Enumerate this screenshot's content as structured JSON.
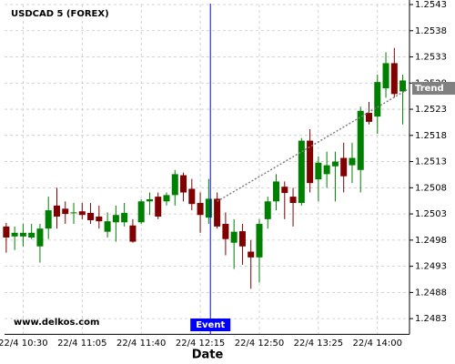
{
  "chart_data": {
    "type": "candlestick",
    "title": "USDCAD 5 (FOREX)",
    "watermark": "www.delkos.com",
    "x_label": "Date",
    "x": [
      620,
      625,
      630,
      635,
      640,
      645,
      650,
      655,
      660,
      665,
      670,
      675,
      680,
      685,
      690,
      695,
      700,
      705,
      710,
      715,
      720,
      725,
      730,
      735,
      740,
      745,
      750,
      755,
      760,
      765,
      770,
      775,
      780,
      785,
      790,
      795,
      800,
      805,
      810,
      815,
      820,
      825,
      830,
      835,
      840,
      845,
      850,
      855
    ],
    "open": [
      1.25006,
      1.24987,
      1.24987,
      1.24985,
      1.24968,
      1.25002,
      1.25046,
      1.2504,
      1.25032,
      1.25035,
      1.25032,
      1.25025,
      1.24996,
      1.25014,
      1.25014,
      1.25008,
      1.25014,
      1.25054,
      1.25063,
      1.25054,
      1.25066,
      1.25104,
      1.25078,
      1.25051,
      1.25023,
      1.25059,
      1.25011,
      1.24975,
      1.24997,
      1.24958,
      1.24947,
      1.2502,
      1.25054,
      1.25082,
      1.25063,
      1.25051,
      1.2517,
      1.25096,
      1.25106,
      1.25121,
      1.25137,
      1.25123,
      1.25114,
      1.25223,
      1.25216,
      1.2527,
      1.25318,
      1.25264
    ],
    "high": [
      1.25013,
      1.25006,
      1.25011,
      1.25011,
      1.25011,
      1.25063,
      1.2508,
      1.25054,
      1.25051,
      1.25051,
      1.25051,
      1.25046,
      1.25033,
      1.25046,
      1.25051,
      1.2502,
      1.25058,
      1.25071,
      1.25071,
      1.25071,
      1.25114,
      1.25109,
      1.25097,
      1.25071,
      1.25097,
      1.25071,
      1.25033,
      1.2502,
      1.25011,
      1.2498,
      1.2502,
      1.25063,
      1.25106,
      1.25092,
      1.2508,
      1.25175,
      1.25192,
      1.2514,
      1.25149,
      1.25149,
      1.25166,
      1.25166,
      1.25235,
      1.25244,
      1.25296,
      1.25339,
      1.25347,
      1.25296
    ],
    "low": [
      1.24956,
      1.24961,
      1.24968,
      1.24982,
      1.24937,
      1.24982,
      1.25002,
      1.25011,
      1.25011,
      1.2502,
      1.25011,
      1.25002,
      1.24985,
      1.24977,
      1.25006,
      1.24975,
      1.25011,
      1.25028,
      1.2502,
      1.25046,
      1.25046,
      1.25054,
      1.25037,
      1.24994,
      1.25011,
      1.25002,
      1.24951,
      1.24925,
      1.24933,
      1.24887,
      1.24899,
      1.25002,
      1.25037,
      1.2502,
      1.25006,
      1.25046,
      1.25071,
      1.25054,
      1.2508,
      1.25054,
      1.25071,
      1.25089,
      1.25071,
      1.25201,
      1.25183,
      1.25252,
      1.25252,
      1.25201
    ],
    "close": [
      1.24985,
      1.24994,
      1.24994,
      1.24994,
      1.25002,
      1.25037,
      1.25025,
      1.2503,
      1.25033,
      1.25028,
      1.25018,
      1.25016,
      1.25016,
      1.25028,
      1.25032,
      1.24977,
      1.25054,
      1.25058,
      1.25025,
      1.25066,
      1.25106,
      1.25071,
      1.25049,
      1.25028,
      1.25059,
      1.25006,
      1.24982,
      1.24996,
      1.24968,
      1.24947,
      1.25011,
      1.25054,
      1.25092,
      1.2507,
      1.25051,
      1.2517,
      1.25089,
      1.25128,
      1.25123,
      1.2513,
      1.25102,
      1.25137,
      1.25227,
      1.25206,
      1.25282,
      1.25318,
      1.25259,
      1.25285
    ],
    "up_color": "#008000",
    "down_color": "#800000",
    "xlim": [
      619,
      859
    ],
    "xticks": [
      {
        "value": 630,
        "label": "22/4 10:30"
      },
      {
        "value": 665,
        "label": "22/4 11:05"
      },
      {
        "value": 700,
        "label": "22/4 11:40"
      },
      {
        "value": 735,
        "label": "22/4 12:15"
      },
      {
        "value": 770,
        "label": "22/4 12:50"
      },
      {
        "value": 805,
        "label": "22/4 13:25"
      },
      {
        "value": 840,
        "label": "22/4 14:00"
      }
    ],
    "ylim": [
      1.248,
      1.2543
    ],
    "yticks": [
      1.2483,
      1.2488,
      1.2493,
      1.2498,
      1.2503,
      1.2508,
      1.2513,
      1.2518,
      1.2523,
      1.2528,
      1.2533,
      1.2538,
      1.2543
    ],
    "grid": true,
    "event": {
      "label": "Event",
      "x": 741,
      "color": "#0000ff"
    },
    "trend": {
      "label": "Trend",
      "x": [
        745,
        859
      ],
      "y": [
        1.25054,
        1.2527
      ],
      "color": "#808080"
    }
  }
}
